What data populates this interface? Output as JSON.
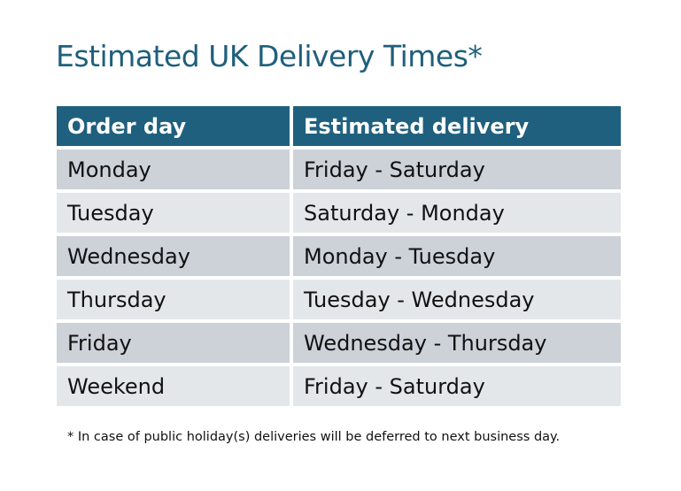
{
  "title": "Estimated UK Delivery Times*",
  "table": {
    "headers": [
      "Order day",
      "Estimated delivery"
    ],
    "rows": [
      [
        "Monday",
        "Friday - Saturday"
      ],
      [
        "Tuesday",
        "Saturday - Monday"
      ],
      [
        "Wednesday",
        "Monday - Tuesday"
      ],
      [
        "Thursday",
        "Tuesday - Wednesday"
      ],
      [
        "Friday",
        "Wednesday - Thursday"
      ],
      [
        "Weekend",
        "Friday - Saturday"
      ]
    ]
  },
  "footnote": "* In case of public holiday(s) deliveries will be deferred to next business day.",
  "colors": {
    "header": "#20607f",
    "title": "#1f5f7c",
    "row_dark": "#cdd1d8",
    "row_light": "#e4e7ea"
  }
}
